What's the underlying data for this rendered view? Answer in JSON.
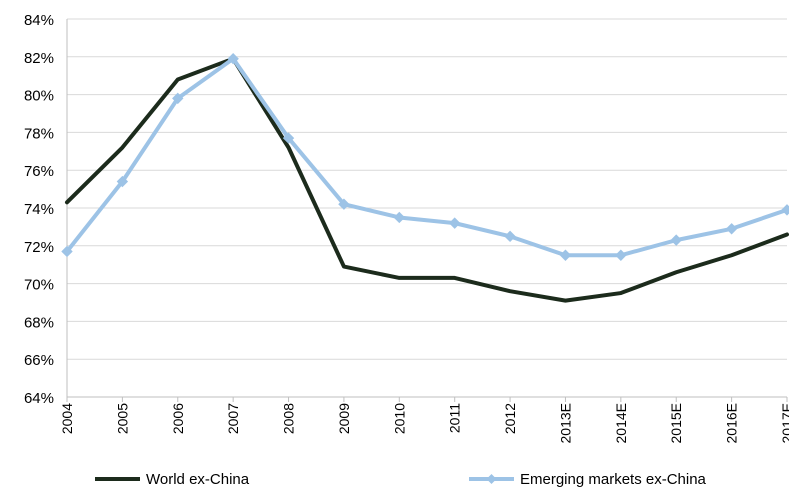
{
  "colors": {
    "world": "#1c2b1c",
    "emerging": "#9dc3e6",
    "grid": "#d9d9d9",
    "axis": "#bfbfbf",
    "text": "#000000"
  },
  "chart_data": {
    "type": "line",
    "title": "",
    "xlabel": "",
    "ylabel": "",
    "categories": [
      "2004",
      "2005",
      "2006",
      "2007",
      "2008",
      "2009",
      "2010",
      "2011",
      "2012",
      "2013E",
      "2014E",
      "2015E",
      "2016E",
      "2017E"
    ],
    "ylim": [
      64,
      84
    ],
    "yticks": [
      64,
      66,
      68,
      70,
      72,
      74,
      76,
      78,
      80,
      82,
      84
    ],
    "ytick_suffix": "%",
    "grid": true,
    "legend_position": "bottom",
    "series": [
      {
        "name": "World ex-China",
        "color": "#1c2b1c",
        "marker": "none",
        "values": [
          74.3,
          77.2,
          80.8,
          81.9,
          77.2,
          70.9,
          70.3,
          70.3,
          69.6,
          69.1,
          69.5,
          70.6,
          71.5,
          72.6
        ]
      },
      {
        "name": "Emerging markets ex-China",
        "color": "#9dc3e6",
        "marker": "diamond",
        "values": [
          71.7,
          75.4,
          79.8,
          81.9,
          77.7,
          74.2,
          73.5,
          73.2,
          72.5,
          71.5,
          71.5,
          72.3,
          72.9,
          73.9
        ]
      }
    ]
  }
}
